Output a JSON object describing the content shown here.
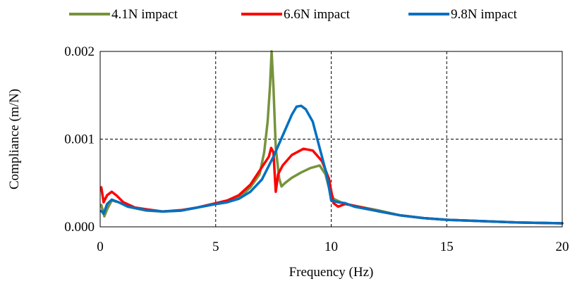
{
  "chart_data": {
    "type": "line",
    "title": "",
    "xlabel": "Frequency (Hz)",
    "ylabel": "Compliance (m/N)",
    "xlim": [
      0,
      20
    ],
    "ylim": [
      0,
      0.002
    ],
    "xticks": [
      0,
      5,
      10,
      15,
      20
    ],
    "xtick_labels": [
      "0",
      "5",
      "10",
      "15",
      "20"
    ],
    "yticks": [
      0,
      0.001,
      0.002
    ],
    "ytick_labels": [
      "0.000",
      "0.001",
      "0.002"
    ],
    "grid": "dashed",
    "legend_position": "top",
    "series": [
      {
        "name": "4.1N impact",
        "color": "#77933c",
        "points": [
          [
            0.05,
            0.00025
          ],
          [
            0.18,
            0.00012
          ],
          [
            0.3,
            0.0002
          ],
          [
            0.5,
            0.0003
          ],
          [
            0.8,
            0.00028
          ],
          [
            1.2,
            0.00023
          ],
          [
            2,
            0.000185
          ],
          [
            2.7,
            0.000175
          ],
          [
            3.5,
            0.000185
          ],
          [
            4.2,
            0.00022
          ],
          [
            5,
            0.00026
          ],
          [
            5.5,
            0.00028
          ],
          [
            6,
            0.00033
          ],
          [
            6.5,
            0.00045
          ],
          [
            6.9,
            0.0006
          ],
          [
            7.1,
            0.00085
          ],
          [
            7.25,
            0.0012
          ],
          [
            7.35,
            0.0016
          ],
          [
            7.42,
            0.002
          ],
          [
            7.5,
            0.0016
          ],
          [
            7.6,
            0.0009
          ],
          [
            7.75,
            0.00055
          ],
          [
            7.85,
            0.00046
          ],
          [
            8,
            0.0005
          ],
          [
            8.3,
            0.00056
          ],
          [
            8.7,
            0.00062
          ],
          [
            9.1,
            0.00067
          ],
          [
            9.5,
            0.0007
          ],
          [
            9.75,
            0.0006
          ],
          [
            9.9,
            0.00045
          ],
          [
            10.1,
            0.00032
          ],
          [
            10.5,
            0.00027
          ],
          [
            11,
            0.00024
          ],
          [
            12,
            0.00019
          ],
          [
            13,
            0.00013
          ],
          [
            14,
            0.0001
          ],
          [
            15,
            8e-05
          ],
          [
            16,
            7e-05
          ],
          [
            17,
            6e-05
          ],
          [
            18,
            5e-05
          ],
          [
            19,
            4.5e-05
          ],
          [
            20,
            4e-05
          ]
        ]
      },
      {
        "name": "6.6N impact",
        "color": "#ff0000",
        "points": [
          [
            0.05,
            0.00045
          ],
          [
            0.15,
            0.00028
          ],
          [
            0.3,
            0.00036
          ],
          [
            0.5,
            0.0004
          ],
          [
            0.7,
            0.00036
          ],
          [
            1,
            0.00028
          ],
          [
            1.5,
            0.00022
          ],
          [
            2,
            0.0002
          ],
          [
            2.7,
            0.000175
          ],
          [
            3.5,
            0.00019
          ],
          [
            4.2,
            0.00022
          ],
          [
            5,
            0.00027
          ],
          [
            5.5,
            0.0003
          ],
          [
            6,
            0.00036
          ],
          [
            6.5,
            0.00048
          ],
          [
            7,
            0.00068
          ],
          [
            7.3,
            0.0008
          ],
          [
            7.4,
            0.0009
          ],
          [
            7.5,
            0.00085
          ],
          [
            7.6,
            0.0004
          ],
          [
            7.7,
            0.0006
          ],
          [
            7.9,
            0.0007
          ],
          [
            8.3,
            0.00082
          ],
          [
            8.8,
            0.00089
          ],
          [
            9.2,
            0.00087
          ],
          [
            9.6,
            0.00075
          ],
          [
            9.9,
            0.00055
          ],
          [
            10.1,
            0.00027
          ],
          [
            10.3,
            0.00023
          ],
          [
            10.6,
            0.00026
          ],
          [
            11,
            0.00024
          ],
          [
            12,
            0.00018
          ],
          [
            13,
            0.00013
          ],
          [
            14,
            0.0001
          ],
          [
            15,
            8e-05
          ],
          [
            16,
            7e-05
          ],
          [
            17,
            6e-05
          ],
          [
            18,
            5e-05
          ],
          [
            19,
            4.5e-05
          ],
          [
            20,
            4e-05
          ]
        ]
      },
      {
        "name": "9.8N impact",
        "color": "#0070c0",
        "points": [
          [
            0.05,
            0.00018
          ],
          [
            0.15,
            0.00015
          ],
          [
            0.3,
            0.00026
          ],
          [
            0.5,
            0.00031
          ],
          [
            0.8,
            0.00028
          ],
          [
            1.2,
            0.00023
          ],
          [
            2,
            0.00019
          ],
          [
            2.7,
            0.000175
          ],
          [
            3.5,
            0.000185
          ],
          [
            4.2,
            0.00022
          ],
          [
            5,
            0.00026
          ],
          [
            5.5,
            0.00028
          ],
          [
            6,
            0.00032
          ],
          [
            6.5,
            0.0004
          ],
          [
            7,
            0.00054
          ],
          [
            7.5,
            0.0008
          ],
          [
            8,
            0.0011
          ],
          [
            8.3,
            0.00128
          ],
          [
            8.5,
            0.00137
          ],
          [
            8.7,
            0.00138
          ],
          [
            8.9,
            0.00134
          ],
          [
            9.2,
            0.0012
          ],
          [
            9.5,
            0.0009
          ],
          [
            9.8,
            0.0006
          ],
          [
            10,
            0.0003
          ],
          [
            10.3,
            0.00028
          ],
          [
            10.6,
            0.00027
          ],
          [
            11,
            0.00023
          ],
          [
            12,
            0.00018
          ],
          [
            13,
            0.00013
          ],
          [
            14,
            0.0001
          ],
          [
            15,
            8e-05
          ],
          [
            16,
            7e-05
          ],
          [
            17,
            6e-05
          ],
          [
            18,
            5e-05
          ],
          [
            19,
            4.5e-05
          ],
          [
            20,
            4e-05
          ]
        ]
      }
    ]
  }
}
